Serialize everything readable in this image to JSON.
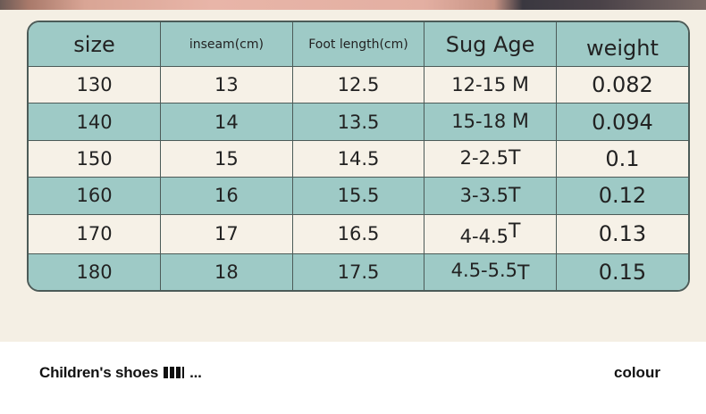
{
  "size_chart": {
    "headers": [
      "size",
      "inseam(cm)",
      "Foot length(cm)",
      "Sug Age",
      "weight"
    ],
    "rows": [
      {
        "size": "130",
        "inseam": "13",
        "foot_length": "12.5",
        "age": "12-15",
        "age_unit": "M",
        "weight": "0.082"
      },
      {
        "size": "140",
        "inseam": "14",
        "foot_length": "13.5",
        "age": "15-18",
        "age_unit": "M",
        "weight": "0.094"
      },
      {
        "size": "150",
        "inseam": "15",
        "foot_length": "14.5",
        "age": "2-2.5",
        "age_unit": "T",
        "weight": "0.1"
      },
      {
        "size": "160",
        "inseam": "16",
        "foot_length": "15.5",
        "age": "3-3.5",
        "age_unit": "T",
        "weight": "0.12"
      },
      {
        "size": "170",
        "inseam": "17",
        "foot_length": "16.5",
        "age": "4-4.5",
        "age_unit": "T",
        "weight": "0.13"
      },
      {
        "size": "180",
        "inseam": "18",
        "foot_length": "17.5",
        "age": "4.5-5.5",
        "age_unit": "T",
        "weight": "0.15"
      }
    ],
    "colors": {
      "header_bg": "#9ecac6",
      "alt_row_bg": "#f6f1e7",
      "border": "#4c5b58",
      "page_bg": "#f4efe4"
    }
  },
  "footer": {
    "product_title": "Children's shoes",
    "ellipsis": "...",
    "option_label": "colour"
  }
}
